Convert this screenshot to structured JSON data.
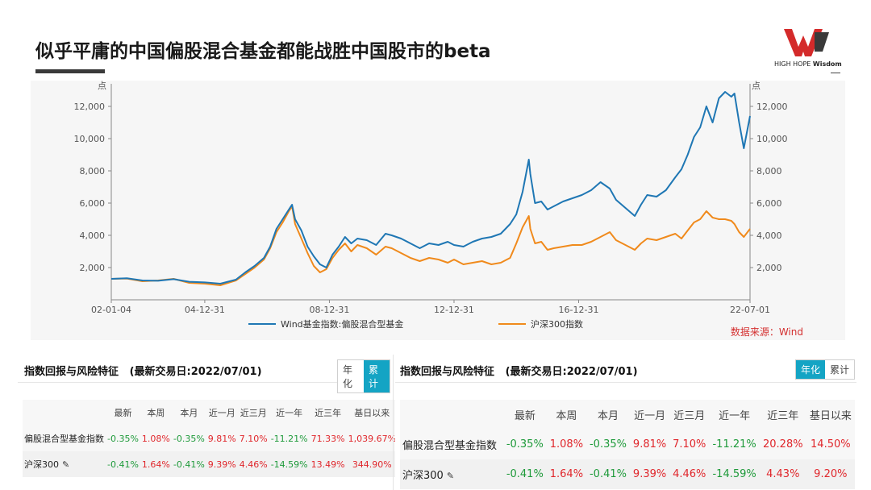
{
  "slide": {
    "title": "似乎平庸的中国偏股混合基金都能战胜中国股市的beta",
    "logo_text_regular": "HIGH HOPE ",
    "logo_text_bold": "Wisdom"
  },
  "colors": {
    "fund_series": "#1f77b4",
    "csi300_series": "#f08a1c",
    "positive": "#e0262b",
    "negative": "#1e9a3a",
    "accent": "#14a4c4",
    "logo_red": "#d42a2a"
  },
  "chart_data": {
    "type": "line",
    "unit_left": "点",
    "unit_right": "点",
    "x_ticks": [
      "02-01-04",
      "04-12-31",
      "08-12-31",
      "12-12-31",
      "16-12-31",
      "22-07-01"
    ],
    "y_ticks": [
      "2,000",
      "4,000",
      "6,000",
      "8,000",
      "10,000",
      "12,000"
    ],
    "y_tick_values": [
      2000,
      4000,
      6000,
      8000,
      10000,
      12000
    ],
    "ylim": [
      0,
      13000
    ],
    "xlim": [
      2002.0,
      2022.5
    ],
    "grid": false,
    "legend_position": "bottom",
    "source_note": "数据来源：Wind",
    "series": [
      {
        "name": "Wind基金指数:偏股混合型基金",
        "color": "#1f77b4",
        "x": [
          2002.0,
          2002.5,
          2003.0,
          2003.5,
          2004.0,
          2004.5,
          2005.0,
          2005.5,
          2006.0,
          2006.3,
          2006.6,
          2006.9,
          2007.1,
          2007.3,
          2007.5,
          2007.7,
          2007.8,
          2007.9,
          2008.1,
          2008.3,
          2008.5,
          2008.7,
          2008.9,
          2009.1,
          2009.3,
          2009.5,
          2009.7,
          2009.9,
          2010.2,
          2010.5,
          2010.8,
          2011.0,
          2011.3,
          2011.6,
          2011.9,
          2012.2,
          2012.5,
          2012.8,
          2013.0,
          2013.3,
          2013.6,
          2013.9,
          2014.2,
          2014.5,
          2014.8,
          2015.0,
          2015.2,
          2015.4,
          2015.45,
          2015.6,
          2015.8,
          2016.0,
          2016.2,
          2016.5,
          2016.8,
          2017.1,
          2017.4,
          2017.7,
          2018.0,
          2018.2,
          2018.5,
          2018.8,
          2019.0,
          2019.2,
          2019.5,
          2019.8,
          2020.1,
          2020.3,
          2020.5,
          2020.7,
          2020.9,
          2021.1,
          2021.3,
          2021.5,
          2021.7,
          2021.9,
          2022.0,
          2022.15,
          2022.3,
          2022.5
        ],
        "values": [
          1300,
          1340,
          1200,
          1180,
          1280,
          1120,
          1080,
          1000,
          1250,
          1700,
          2100,
          2600,
          3300,
          4400,
          5000,
          5600,
          5900,
          5000,
          4300,
          3300,
          2700,
          2200,
          2000,
          2800,
          3300,
          3900,
          3500,
          3800,
          3700,
          3400,
          4100,
          4000,
          3800,
          3500,
          3200,
          3500,
          3400,
          3600,
          3400,
          3300,
          3600,
          3800,
          3900,
          4100,
          4700,
          5300,
          6700,
          8700,
          7800,
          6000,
          6100,
          5600,
          5800,
          6100,
          6300,
          6500,
          6800,
          7300,
          6900,
          6200,
          5700,
          5200,
          5900,
          6500,
          6400,
          6800,
          7600,
          8100,
          9000,
          10100,
          10700,
          12000,
          11000,
          12500,
          12900,
          12600,
          12800,
          11000,
          9400,
          11400
        ]
      },
      {
        "name": "沪深300指数",
        "color": "#f08a1c",
        "x": [
          2002.0,
          2002.5,
          2003.0,
          2003.5,
          2004.0,
          2004.5,
          2005.0,
          2005.5,
          2006.0,
          2006.3,
          2006.6,
          2006.9,
          2007.1,
          2007.3,
          2007.5,
          2007.7,
          2007.8,
          2007.9,
          2008.1,
          2008.3,
          2008.5,
          2008.7,
          2008.9,
          2009.1,
          2009.3,
          2009.5,
          2009.7,
          2009.9,
          2010.2,
          2010.5,
          2010.8,
          2011.0,
          2011.3,
          2011.6,
          2011.9,
          2012.2,
          2012.5,
          2012.8,
          2013.0,
          2013.3,
          2013.6,
          2013.9,
          2014.2,
          2014.5,
          2014.8,
          2015.0,
          2015.2,
          2015.4,
          2015.45,
          2015.6,
          2015.8,
          2016.0,
          2016.2,
          2016.5,
          2016.8,
          2017.1,
          2017.4,
          2017.7,
          2018.0,
          2018.2,
          2018.5,
          2018.8,
          2019.0,
          2019.2,
          2019.5,
          2019.8,
          2020.1,
          2020.3,
          2020.5,
          2020.7,
          2020.9,
          2021.1,
          2021.3,
          2021.5,
          2021.7,
          2021.9,
          2022.0,
          2022.15,
          2022.3,
          2022.5
        ],
        "values": [
          1300,
          1320,
          1150,
          1200,
          1300,
          1050,
          1000,
          900,
          1200,
          1600,
          2000,
          2500,
          3200,
          4200,
          4800,
          5500,
          5800,
          4700,
          3800,
          2900,
          2100,
          1700,
          1900,
          2600,
          3100,
          3500,
          3000,
          3400,
          3200,
          2800,
          3300,
          3200,
          2900,
          2600,
          2400,
          2600,
          2500,
          2300,
          2500,
          2200,
          2300,
          2400,
          2200,
          2300,
          2600,
          3500,
          4500,
          5200,
          4400,
          3500,
          3600,
          3100,
          3200,
          3300,
          3400,
          3400,
          3600,
          3900,
          4200,
          3700,
          3400,
          3100,
          3500,
          3800,
          3700,
          3900,
          4100,
          3800,
          4300,
          4800,
          5000,
          5500,
          5100,
          5000,
          5000,
          4900,
          4700,
          4200,
          3900,
          4400
        ]
      }
    ]
  },
  "tables": [
    {
      "title": "指数回报与风险特征",
      "date_label": "(最新交易日:2022/07/01)",
      "toggle_left": "年化",
      "toggle_right": "累计",
      "active": "right",
      "columns": [
        "",
        "最新",
        "本周",
        "本月",
        "近一月",
        "近三月",
        "近一年",
        "近三年",
        "基日以来"
      ],
      "rows": [
        {
          "name": "偏股混合型基金指数",
          "values": [
            "-0.35%",
            "1.08%",
            "-0.35%",
            "9.81%",
            "7.10%",
            "-11.21%",
            "71.33%",
            "1,039.67%"
          ]
        },
        {
          "name": "沪深300",
          "values": [
            "-0.41%",
            "1.64%",
            "-0.41%",
            "9.39%",
            "4.46%",
            "-14.59%",
            "13.49%",
            "344.90%"
          ]
        }
      ]
    },
    {
      "title": "指数回报与风险特征",
      "date_label": "(最新交易日:2022/07/01)",
      "toggle_left": "年化",
      "toggle_right": "累计",
      "active": "left",
      "columns": [
        "",
        "最新",
        "本周",
        "本月",
        "近一月",
        "近三月",
        "近一年",
        "近三年",
        "基日以来"
      ],
      "rows": [
        {
          "name": "偏股混合型基金指数",
          "values": [
            "-0.35%",
            "1.08%",
            "-0.35%",
            "9.81%",
            "7.10%",
            "-11.21%",
            "20.28%",
            "14.50%"
          ]
        },
        {
          "name": "沪深300",
          "values": [
            "-0.41%",
            "1.64%",
            "-0.41%",
            "9.39%",
            "4.46%",
            "-14.59%",
            "4.43%",
            "9.20%"
          ]
        }
      ]
    }
  ]
}
